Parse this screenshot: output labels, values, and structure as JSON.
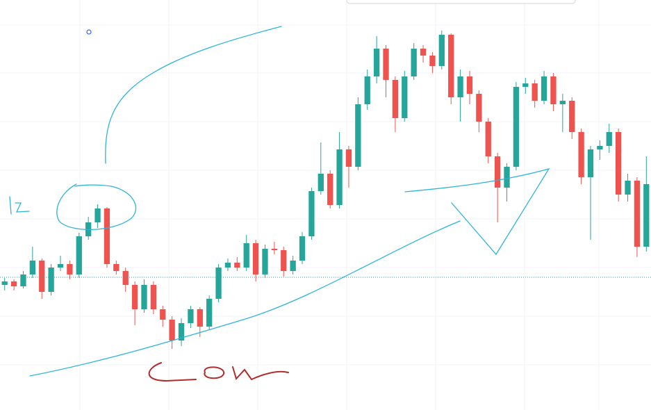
{
  "chart_data": {
    "type": "candlestick",
    "open": [
      180,
      185,
      178,
      195,
      215,
      170,
      205,
      210,
      195,
      250,
      270,
      290,
      210,
      200,
      180,
      145,
      180,
      145,
      130,
      100,
      125,
      145,
      120,
      160,
      205,
      212,
      205,
      240,
      195,
      232,
      230,
      200,
      215,
      250,
      315,
      340,
      295,
      375,
      350,
      440,
      480,
      520,
      475,
      420,
      480,
      520,
      510,
      495,
      540,
      450,
      480,
      455,
      415,
      365,
      320,
      350,
      465,
      470,
      445,
      480,
      440,
      445,
      400,
      335,
      375,
      380,
      400,
      310,
      330,
      235
    ],
    "high": [
      190,
      188,
      200,
      235,
      218,
      210,
      222,
      215,
      255,
      278,
      296,
      292,
      215,
      205,
      185,
      188,
      185,
      150,
      135,
      132,
      150,
      148,
      165,
      210,
      218,
      220,
      252,
      245,
      238,
      242,
      235,
      222,
      256,
      320,
      385,
      345,
      400,
      380,
      450,
      490,
      538,
      525,
      480,
      488,
      528,
      525,
      515,
      546,
      542,
      490,
      488,
      460,
      420,
      370,
      355,
      472,
      478,
      475,
      488,
      485,
      455,
      450,
      405,
      380,
      388,
      412,
      405,
      340,
      335,
      365
    ],
    "low": [
      172,
      172,
      175,
      190,
      160,
      165,
      200,
      188,
      190,
      245,
      262,
      205,
      195,
      170,
      122,
      140,
      138,
      120,
      88,
      92,
      118,
      105,
      115,
      155,
      200,
      200,
      200,
      185,
      190,
      224,
      192,
      195,
      210,
      245,
      310,
      290,
      290,
      320,
      345,
      432,
      470,
      450,
      400,
      415,
      475,
      500,
      485,
      490,
      440,
      415,
      440,
      400,
      355,
      270,
      300,
      345,
      455,
      435,
      440,
      430,
      400,
      390,
      325,
      245,
      360,
      370,
      300,
      300,
      220,
      228
    ],
    "close": [
      185,
      178,
      195,
      215,
      170,
      205,
      210,
      195,
      250,
      270,
      290,
      210,
      200,
      180,
      145,
      180,
      145,
      130,
      100,
      125,
      145,
      120,
      160,
      205,
      212,
      205,
      240,
      195,
      232,
      230,
      200,
      215,
      250,
      315,
      340,
      295,
      375,
      350,
      440,
      480,
      520,
      475,
      420,
      480,
      520,
      510,
      495,
      540,
      450,
      480,
      455,
      415,
      365,
      320,
      350,
      465,
      470,
      445,
      480,
      440,
      445,
      400,
      335,
      375,
      380,
      400,
      310,
      330,
      235,
      325
    ],
    "up_color": "#26a69a",
    "down_color": "#ef5350",
    "ylim": [
      0,
      590
    ],
    "price_line": 191,
    "price_line_color": "#26a69a"
  }
}
